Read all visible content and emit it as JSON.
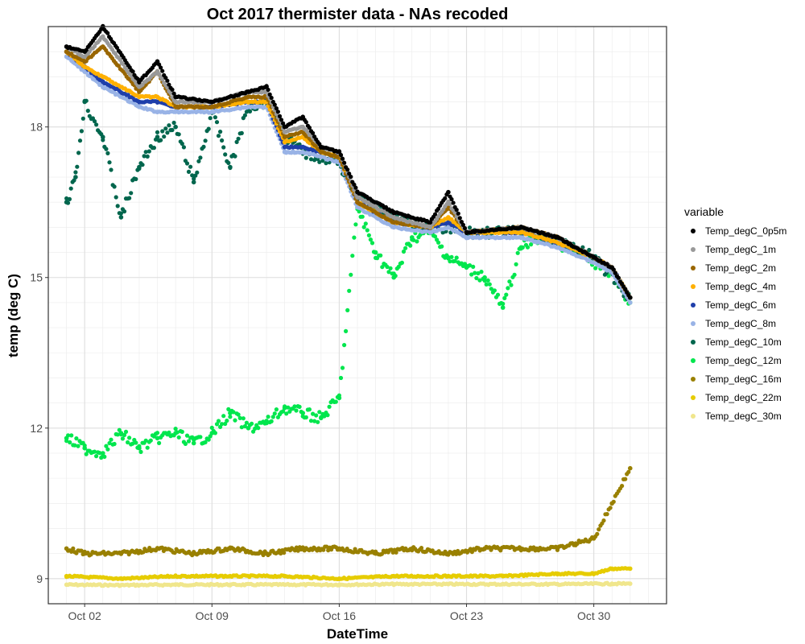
{
  "chart_data": {
    "type": "scatter",
    "title": "Oct 2017 thermister data - NAs recoded",
    "xlabel": "DateTime",
    "ylabel": "temp (deg C)",
    "xlim": [
      "2017-09-30T00:00",
      "2017-11-03T00:00"
    ],
    "ylim": [
      8.5,
      20.0
    ],
    "x_ticks": [
      {
        "date": "2017-10-02",
        "label": "Oct 02"
      },
      {
        "date": "2017-10-09",
        "label": "Oct 09"
      },
      {
        "date": "2017-10-16",
        "label": "Oct 16"
      },
      {
        "date": "2017-10-23",
        "label": "Oct 23"
      },
      {
        "date": "2017-10-30",
        "label": "Oct 30"
      }
    ],
    "y_ticks": [
      9,
      12,
      15,
      18
    ],
    "grid": true,
    "legend_title": "variable",
    "legend_position": "right",
    "series": [
      {
        "name": "Temp_degC_0p5m",
        "color": "#000000",
        "x": [
          "2017-10-01",
          "2017-10-02",
          "2017-10-03",
          "2017-10-05",
          "2017-10-06",
          "2017-10-07",
          "2017-10-09",
          "2017-10-11",
          "2017-10-12",
          "2017-10-13",
          "2017-10-14",
          "2017-10-15",
          "2017-10-16",
          "2017-10-17",
          "2017-10-19",
          "2017-10-21",
          "2017-10-22",
          "2017-10-23",
          "2017-10-26",
          "2017-10-28",
          "2017-10-30",
          "2017-10-31",
          "2017-11-01"
        ],
        "y": [
          19.6,
          19.5,
          20.0,
          18.9,
          19.3,
          18.6,
          18.5,
          18.7,
          18.8,
          18.0,
          18.2,
          17.6,
          17.5,
          16.7,
          16.3,
          16.1,
          16.7,
          15.9,
          16.0,
          15.8,
          15.4,
          15.2,
          14.6
        ]
      },
      {
        "name": "Temp_degC_1m",
        "color": "#999999",
        "x": [
          "2017-10-01",
          "2017-10-02",
          "2017-10-03",
          "2017-10-05",
          "2017-10-06",
          "2017-10-07",
          "2017-10-09",
          "2017-10-11",
          "2017-10-12",
          "2017-10-13",
          "2017-10-14",
          "2017-10-15",
          "2017-10-16",
          "2017-10-17",
          "2017-10-19",
          "2017-10-21",
          "2017-10-22",
          "2017-10-23",
          "2017-10-26",
          "2017-10-28",
          "2017-10-30",
          "2017-10-31",
          "2017-11-01"
        ],
        "y": [
          19.6,
          19.4,
          19.8,
          18.8,
          19.1,
          18.5,
          18.5,
          18.7,
          18.7,
          17.9,
          18.0,
          17.6,
          17.5,
          16.6,
          16.2,
          16.0,
          16.5,
          15.9,
          16.0,
          15.8,
          15.4,
          15.2,
          14.6
        ]
      },
      {
        "name": "Temp_degC_2m",
        "color": "#996600",
        "x": [
          "2017-10-01",
          "2017-10-02",
          "2017-10-03",
          "2017-10-05",
          "2017-10-06",
          "2017-10-07",
          "2017-10-09",
          "2017-10-11",
          "2017-10-12",
          "2017-10-13",
          "2017-10-14",
          "2017-10-15",
          "2017-10-16",
          "2017-10-17",
          "2017-10-19",
          "2017-10-21",
          "2017-10-22",
          "2017-10-23",
          "2017-10-26",
          "2017-10-28",
          "2017-10-30",
          "2017-10-31",
          "2017-11-01"
        ],
        "y": [
          19.5,
          19.3,
          19.6,
          18.7,
          19.1,
          18.4,
          18.4,
          18.6,
          18.6,
          17.8,
          17.9,
          17.5,
          17.4,
          16.5,
          16.1,
          16.0,
          16.4,
          15.9,
          16.0,
          15.8,
          15.4,
          15.2,
          14.6
        ]
      },
      {
        "name": "Temp_degC_4m",
        "color": "#FFB000",
        "x": [
          "2017-10-01",
          "2017-10-02",
          "2017-10-03",
          "2017-10-05",
          "2017-10-06",
          "2017-10-07",
          "2017-10-09",
          "2017-10-11",
          "2017-10-12",
          "2017-10-13",
          "2017-10-14",
          "2017-10-15",
          "2017-10-16",
          "2017-10-17",
          "2017-10-19",
          "2017-10-21",
          "2017-10-22",
          "2017-10-23",
          "2017-10-26",
          "2017-10-28",
          "2017-10-30",
          "2017-10-31",
          "2017-11-01"
        ],
        "y": [
          19.5,
          19.2,
          19.0,
          18.6,
          18.6,
          18.4,
          18.4,
          18.5,
          18.5,
          17.7,
          17.8,
          17.5,
          17.4,
          16.5,
          16.1,
          16.0,
          16.2,
          15.9,
          15.9,
          15.7,
          15.4,
          15.2,
          14.6
        ]
      },
      {
        "name": "Temp_degC_6m",
        "color": "#1F3FAA",
        "x": [
          "2017-10-01",
          "2017-10-02",
          "2017-10-03",
          "2017-10-05",
          "2017-10-06",
          "2017-10-07",
          "2017-10-09",
          "2017-10-11",
          "2017-10-12",
          "2017-10-13",
          "2017-10-14",
          "2017-10-15",
          "2017-10-16",
          "2017-10-17",
          "2017-10-19",
          "2017-10-21",
          "2017-10-22",
          "2017-10-23",
          "2017-10-26",
          "2017-10-28",
          "2017-10-30",
          "2017-10-31",
          "2017-11-01"
        ],
        "y": [
          19.5,
          19.2,
          18.9,
          18.5,
          18.5,
          18.4,
          18.4,
          18.5,
          18.5,
          17.6,
          17.6,
          17.5,
          17.4,
          16.5,
          16.1,
          16.0,
          16.1,
          15.9,
          15.9,
          15.7,
          15.4,
          15.2,
          14.6
        ]
      },
      {
        "name": "Temp_degC_8m",
        "color": "#99B3E6",
        "x": [
          "2017-10-01",
          "2017-10-02",
          "2017-10-03",
          "2017-10-05",
          "2017-10-06",
          "2017-10-07",
          "2017-10-09",
          "2017-10-11",
          "2017-10-12",
          "2017-10-13",
          "2017-10-14",
          "2017-10-15",
          "2017-10-16",
          "2017-10-17",
          "2017-10-19",
          "2017-10-21",
          "2017-10-22",
          "2017-10-23",
          "2017-10-26",
          "2017-10-28",
          "2017-10-30",
          "2017-10-31",
          "2017-11-01"
        ],
        "y": [
          19.4,
          19.1,
          18.8,
          18.4,
          18.3,
          18.3,
          18.3,
          18.4,
          18.4,
          17.5,
          17.5,
          17.4,
          17.3,
          16.4,
          16.0,
          15.9,
          16.0,
          15.8,
          15.8,
          15.6,
          15.3,
          15.1,
          14.5
        ]
      },
      {
        "name": "Temp_degC_10m",
        "color": "#00664D",
        "x": [
          "2017-10-01",
          "2017-10-01T12:00",
          "2017-10-02",
          "2017-10-03",
          "2017-10-04",
          "2017-10-05",
          "2017-10-06",
          "2017-10-07",
          "2017-10-08",
          "2017-10-09",
          "2017-10-10",
          "2017-10-11",
          "2017-10-12",
          "2017-10-13",
          "2017-10-14",
          "2017-10-15",
          "2017-10-16",
          "2017-10-17",
          "2017-10-19",
          "2017-10-21",
          "2017-10-23",
          "2017-10-26",
          "2017-10-28",
          "2017-10-30",
          "2017-11-01"
        ],
        "y": [
          16.5,
          17.0,
          18.5,
          17.8,
          16.2,
          17.2,
          17.8,
          18.0,
          16.9,
          18.3,
          17.2,
          18.4,
          18.5,
          17.8,
          17.5,
          17.4,
          17.3,
          16.6,
          16.2,
          16.0,
          15.9,
          15.9,
          15.7,
          15.4,
          14.6
        ]
      },
      {
        "name": "Temp_degC_12m",
        "color": "#00E64D",
        "x": [
          "2017-10-01",
          "2017-10-02",
          "2017-10-03",
          "2017-10-04",
          "2017-10-05",
          "2017-10-06",
          "2017-10-07",
          "2017-10-08",
          "2017-10-09",
          "2017-10-10",
          "2017-10-11",
          "2017-10-12",
          "2017-10-13",
          "2017-10-14",
          "2017-10-15",
          "2017-10-16",
          "2017-10-17",
          "2017-10-18",
          "2017-10-19",
          "2017-10-20",
          "2017-10-21",
          "2017-10-22",
          "2017-10-23",
          "2017-10-24",
          "2017-10-25",
          "2017-10-26",
          "2017-10-27",
          "2017-10-28",
          "2017-10-29",
          "2017-10-30",
          "2017-10-31",
          "2017-11-01"
        ],
        "y": [
          11.8,
          11.6,
          11.5,
          11.9,
          11.6,
          11.8,
          11.9,
          11.7,
          11.9,
          12.3,
          12.0,
          12.1,
          12.4,
          12.3,
          12.2,
          12.6,
          16.4,
          15.5,
          15.0,
          15.8,
          15.9,
          15.4,
          15.2,
          15.0,
          14.4,
          15.6,
          15.8,
          15.7,
          15.5,
          15.3,
          15.1,
          14.5
        ]
      },
      {
        "name": "Temp_degC_16m",
        "color": "#998000",
        "x": [
          "2017-10-01",
          "2017-10-02",
          "2017-10-04",
          "2017-10-06",
          "2017-10-08",
          "2017-10-10",
          "2017-10-12",
          "2017-10-14",
          "2017-10-16",
          "2017-10-18",
          "2017-10-20",
          "2017-10-22",
          "2017-10-24",
          "2017-10-26",
          "2017-10-28",
          "2017-10-29",
          "2017-10-30",
          "2017-10-31",
          "2017-11-01"
        ],
        "y": [
          9.6,
          9.5,
          9.5,
          9.6,
          9.5,
          9.6,
          9.5,
          9.6,
          9.6,
          9.5,
          9.6,
          9.5,
          9.6,
          9.6,
          9.6,
          9.7,
          9.8,
          10.5,
          11.2
        ]
      },
      {
        "name": "Temp_degC_22m",
        "color": "#E6CC00",
        "x": [
          "2017-10-01",
          "2017-10-04",
          "2017-10-07",
          "2017-10-10",
          "2017-10-13",
          "2017-10-16",
          "2017-10-19",
          "2017-10-22",
          "2017-10-25",
          "2017-10-28",
          "2017-10-30",
          "2017-10-31",
          "2017-11-01"
        ],
        "y": [
          9.05,
          9.0,
          9.05,
          9.05,
          9.05,
          9.0,
          9.05,
          9.05,
          9.05,
          9.1,
          9.1,
          9.2,
          9.2
        ]
      },
      {
        "name": "Temp_degC_30m",
        "color": "#F0E68C",
        "x": [
          "2017-10-01",
          "2017-10-04",
          "2017-10-07",
          "2017-10-10",
          "2017-10-13",
          "2017-10-16",
          "2017-10-19",
          "2017-10-22",
          "2017-10-25",
          "2017-10-28",
          "2017-10-31",
          "2017-11-01"
        ],
        "y": [
          8.88,
          8.87,
          8.88,
          8.88,
          8.88,
          8.88,
          8.89,
          8.89,
          8.89,
          8.89,
          8.9,
          8.9
        ]
      }
    ]
  }
}
